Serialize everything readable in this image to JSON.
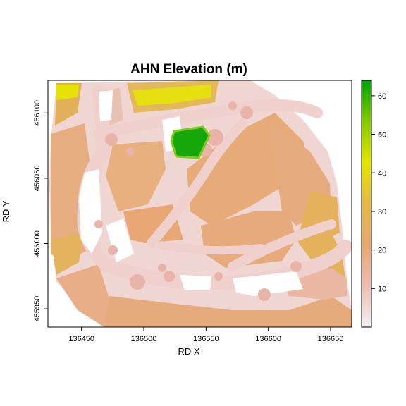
{
  "chart_data": {
    "type": "heatmap",
    "title": "AHN Elevation (m)",
    "xlabel": "RD X",
    "ylabel": "RD Y",
    "xlim": [
      136423,
      136667
    ],
    "ylim": [
      455936,
      456125
    ],
    "x_ticks": [
      136450,
      136500,
      136550,
      136600,
      136650
    ],
    "x_tick_labels": [
      "136450",
      "136500",
      "136550",
      "136600",
      "136650"
    ],
    "y_ticks": [
      455950,
      456000,
      456050,
      456100
    ],
    "y_tick_labels": [
      "455950",
      "456000",
      "456050",
      "456100"
    ],
    "legend": {
      "placement": "right",
      "range": [
        0,
        64
      ],
      "ticks": [
        10,
        20,
        30,
        40,
        50,
        60
      ],
      "tick_labels": [
        "10",
        "20",
        "30",
        "40",
        "50",
        "60"
      ],
      "colors": [
        "#f2f2f2",
        "#eebeb2",
        "#e8a870",
        "#e6b94a",
        "#e6e600",
        "#84cc00",
        "#00a600"
      ]
    }
  }
}
